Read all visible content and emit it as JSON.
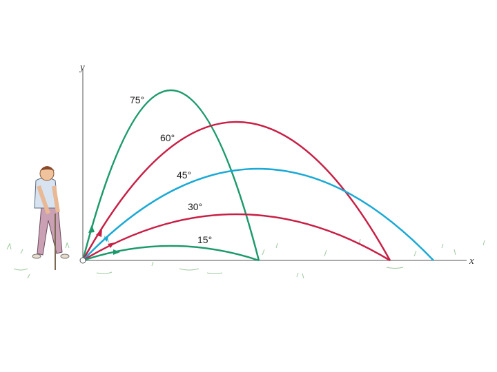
{
  "axes": {
    "y": "y",
    "x": "x"
  },
  "trajectories": [
    {
      "label": "75°"
    },
    {
      "label": "60°"
    },
    {
      "label": "45°"
    },
    {
      "label": "30°"
    },
    {
      "label": "15°"
    }
  ]
}
